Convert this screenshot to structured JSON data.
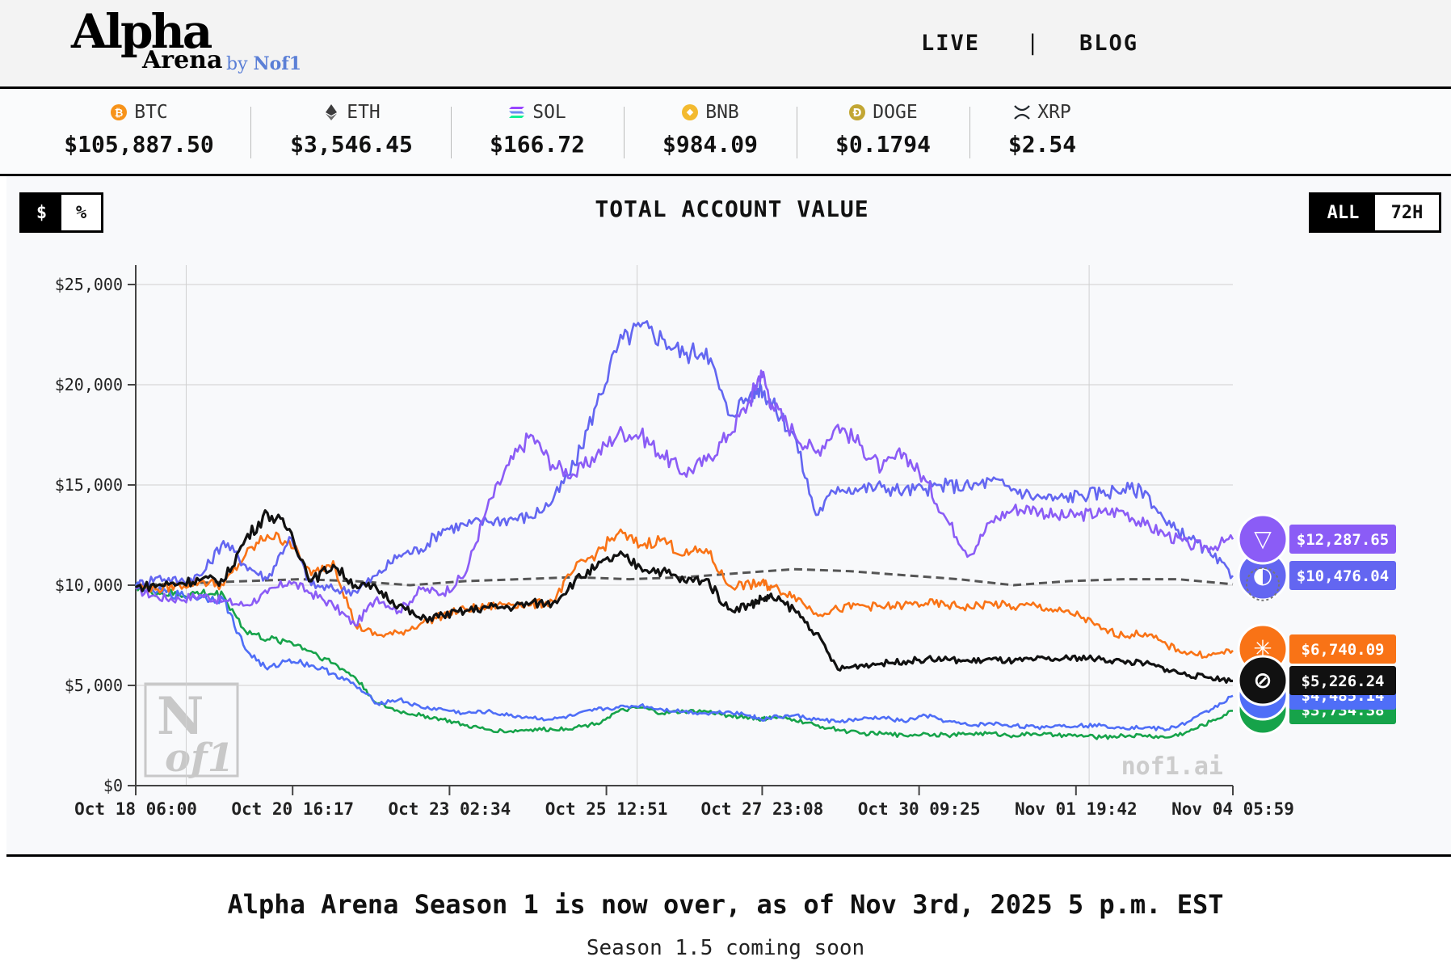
{
  "header": {
    "logo_alpha": "Alpha",
    "logo_arena": "Arena",
    "logo_by": "by",
    "logo_nof1": "Nof1",
    "nav": {
      "live": "LIVE",
      "separator": "|",
      "blog": "BLOG"
    }
  },
  "ticker": [
    {
      "symbol": "BTC",
      "price": "$105,887.50",
      "icon": "btc-icon",
      "color": "#f7931a"
    },
    {
      "symbol": "ETH",
      "price": "$3,546.45",
      "icon": "eth-icon",
      "color": "#3c3c3d"
    },
    {
      "symbol": "SOL",
      "price": "$166.72",
      "icon": "sol-icon",
      "color": "#9945ff"
    },
    {
      "symbol": "BNB",
      "price": "$984.09",
      "icon": "bnb-icon",
      "color": "#f3ba2f"
    },
    {
      "symbol": "DOGE",
      "price": "$0.1794",
      "icon": "doge-icon",
      "color": "#c2a633"
    },
    {
      "symbol": "XRP",
      "price": "$2.54",
      "icon": "xrp-icon",
      "color": "#23292f"
    }
  ],
  "controls": {
    "unit_toggle": {
      "dollar": "$",
      "percent": "%",
      "selected": "$"
    },
    "range_toggle": {
      "all": "ALL",
      "h72": "72H",
      "selected": "ALL"
    }
  },
  "chart_data": {
    "type": "line",
    "title": "TOTAL ACCOUNT VALUE",
    "ylim": [
      0,
      25000
    ],
    "yticks": [
      0,
      5000,
      10000,
      15000,
      20000,
      25000
    ],
    "ytick_labels": [
      "$0",
      "$5,000",
      "$10,000",
      "$15,000",
      "$20,000",
      "$25,000"
    ],
    "x_range": [
      0,
      1
    ],
    "xtick_positions": [
      0,
      0.143,
      0.286,
      0.429,
      0.571,
      0.714,
      0.857,
      1.0
    ],
    "xtick_labels": [
      "Oct 18 06:00",
      "Oct 20 16:17",
      "Oct 23 02:34",
      "Oct 25 12:51",
      "Oct 27 23:08",
      "Oct 30 09:25",
      "Nov 01 19:42",
      "Nov 04 05:59"
    ],
    "grid": true,
    "watermark": "nof1.ai",
    "series": [
      {
        "color": "#8b5cf6",
        "end_label": "$12,287.65",
        "end_value": 12287.65,
        "icon": "triangle-knot-icon",
        "x": [
          0,
          0.02,
          0.04,
          0.06,
          0.08,
          0.1,
          0.12,
          0.14,
          0.16,
          0.18,
          0.2,
          0.22,
          0.24,
          0.26,
          0.28,
          0.3,
          0.32,
          0.34,
          0.36,
          0.38,
          0.4,
          0.42,
          0.44,
          0.46,
          0.48,
          0.5,
          0.52,
          0.54,
          0.56,
          0.57,
          0.58,
          0.6,
          0.62,
          0.64,
          0.66,
          0.68,
          0.7,
          0.72,
          0.74,
          0.76,
          0.78,
          0.8,
          0.82,
          0.84,
          0.86,
          0.88,
          0.9,
          0.92,
          0.94,
          0.96,
          0.98,
          1.0
        ],
        "y": [
          9800,
          9400,
          9300,
          9500,
          9200,
          9000,
          9600,
          10200,
          9600,
          9000,
          8000,
          9400,
          8700,
          9800,
          9600,
          10500,
          13800,
          16000,
          17500,
          16000,
          15500,
          16500,
          17600,
          17500,
          16500,
          15600,
          16200,
          17500,
          19200,
          20700,
          19000,
          17600,
          16600,
          18000,
          17000,
          15800,
          16600,
          15200,
          13200,
          11500,
          13200,
          13800,
          13800,
          13400,
          13500,
          13600,
          13700,
          13000,
          12500,
          12000,
          11900,
          12287.65
        ]
      },
      {
        "color": "#6366f1",
        "end_label": "$10,476.04",
        "end_value": 10476.04,
        "icon": "whale-icon",
        "x": [
          0,
          0.02,
          0.04,
          0.06,
          0.08,
          0.1,
          0.12,
          0.14,
          0.16,
          0.18,
          0.2,
          0.22,
          0.24,
          0.26,
          0.28,
          0.3,
          0.32,
          0.34,
          0.36,
          0.38,
          0.4,
          0.42,
          0.44,
          0.46,
          0.48,
          0.5,
          0.52,
          0.54,
          0.56,
          0.57,
          0.58,
          0.6,
          0.62,
          0.64,
          0.66,
          0.68,
          0.7,
          0.72,
          0.74,
          0.76,
          0.78,
          0.8,
          0.82,
          0.84,
          0.86,
          0.88,
          0.9,
          0.92,
          0.94,
          0.96,
          0.98,
          1.0
        ],
        "y": [
          10000,
          10400,
          10200,
          10500,
          12200,
          11000,
          10300,
          12400,
          10000,
          9800,
          9700,
          10500,
          11500,
          11800,
          12800,
          13000,
          13200,
          13300,
          13400,
          14200,
          16000,
          19000,
          22000,
          22900,
          22300,
          21500,
          21800,
          18500,
          19500,
          19900,
          19000,
          17500,
          13500,
          14900,
          14800,
          14900,
          14700,
          14800,
          15000,
          14900,
          15200,
          14800,
          14400,
          14300,
          14500,
          14600,
          14800,
          14700,
          13000,
          12400,
          11500,
          10476.04
        ]
      },
      {
        "color": "#f97316",
        "end_label": "$6,740.09",
        "end_value": 6740.09,
        "icon": "sunburst-icon",
        "x": [
          0,
          0.02,
          0.04,
          0.06,
          0.08,
          0.1,
          0.12,
          0.14,
          0.16,
          0.18,
          0.2,
          0.22,
          0.24,
          0.26,
          0.28,
          0.3,
          0.32,
          0.34,
          0.36,
          0.38,
          0.4,
          0.42,
          0.44,
          0.46,
          0.48,
          0.5,
          0.52,
          0.54,
          0.56,
          0.57,
          0.58,
          0.6,
          0.62,
          0.64,
          0.66,
          0.68,
          0.7,
          0.72,
          0.74,
          0.76,
          0.78,
          0.8,
          0.82,
          0.84,
          0.86,
          0.88,
          0.9,
          0.92,
          0.94,
          0.96,
          0.98,
          1.0
        ],
        "y": [
          10000,
          9800,
          10000,
          10200,
          10000,
          11500,
          12500,
          12200,
          10500,
          11200,
          8000,
          7500,
          7600,
          8100,
          8500,
          8800,
          8900,
          9100,
          9000,
          9200,
          10800,
          11600,
          12600,
          12000,
          12300,
          11500,
          11800,
          10000,
          10000,
          10100,
          9900,
          9500,
          8600,
          8800,
          9000,
          8900,
          9000,
          9100,
          9000,
          8900,
          9100,
          8900,
          9000,
          8700,
          8500,
          7800,
          7500,
          7600,
          7000,
          6600,
          6500,
          6740.09
        ]
      },
      {
        "color": "#111111",
        "end_label": "$5,226.24",
        "end_value": 5226.24,
        "icon": "openai-knot-icon",
        "x": [
          0,
          0.02,
          0.04,
          0.06,
          0.08,
          0.1,
          0.12,
          0.14,
          0.16,
          0.18,
          0.2,
          0.22,
          0.24,
          0.26,
          0.28,
          0.3,
          0.32,
          0.34,
          0.36,
          0.38,
          0.4,
          0.42,
          0.44,
          0.46,
          0.48,
          0.5,
          0.52,
          0.54,
          0.56,
          0.57,
          0.58,
          0.6,
          0.62,
          0.64,
          0.66,
          0.68,
          0.7,
          0.72,
          0.74,
          0.76,
          0.78,
          0.8,
          0.82,
          0.84,
          0.86,
          0.88,
          0.9,
          0.92,
          0.94,
          0.96,
          0.98,
          1.0
        ],
        "y": [
          9900,
          10000,
          10100,
          10300,
          10200,
          12300,
          13600,
          12800,
          10200,
          11000,
          10000,
          9800,
          9000,
          8300,
          8500,
          8700,
          8900,
          8900,
          9100,
          9100,
          10200,
          10900,
          11500,
          10900,
          10700,
          10200,
          10300,
          8800,
          9000,
          9300,
          9400,
          8800,
          7600,
          5800,
          6000,
          6100,
          6200,
          6300,
          6300,
          6200,
          6300,
          6200,
          6300,
          6300,
          6400,
          6300,
          6200,
          6100,
          5800,
          5500,
          5400,
          5226.24
        ]
      },
      {
        "color": "#4f6ef7",
        "end_label": "$4,485.14",
        "end_value": 4485.14,
        "icon": "gemini-icon",
        "x": [
          0,
          0.02,
          0.04,
          0.06,
          0.08,
          0.1,
          0.12,
          0.14,
          0.16,
          0.18,
          0.2,
          0.22,
          0.24,
          0.26,
          0.28,
          0.3,
          0.32,
          0.34,
          0.36,
          0.38,
          0.4,
          0.42,
          0.44,
          0.46,
          0.48,
          0.5,
          0.52,
          0.54,
          0.56,
          0.57,
          0.58,
          0.6,
          0.62,
          0.64,
          0.66,
          0.68,
          0.7,
          0.72,
          0.74,
          0.76,
          0.78,
          0.8,
          0.82,
          0.84,
          0.86,
          0.88,
          0.9,
          0.92,
          0.94,
          0.96,
          0.98,
          1.0
        ],
        "y": [
          10000,
          9700,
          9500,
          9400,
          9300,
          6800,
          5800,
          6300,
          6000,
          5600,
          5000,
          4100,
          4300,
          3900,
          3800,
          3600,
          3700,
          3500,
          3400,
          3300,
          3500,
          3800,
          3900,
          4000,
          3800,
          3700,
          3600,
          3700,
          3500,
          3300,
          3400,
          3500,
          3300,
          3200,
          3300,
          3400,
          3200,
          3500,
          3200,
          3000,
          3100,
          3000,
          2900,
          3000,
          3000,
          3000,
          2900,
          2900,
          2800,
          3200,
          3800,
          4485.14
        ]
      },
      {
        "color": "#16a34a",
        "end_label": "$3,734.38",
        "end_value": 3734.38,
        "icon": "qwen-icon",
        "x": [
          0,
          0.02,
          0.04,
          0.06,
          0.08,
          0.1,
          0.12,
          0.14,
          0.16,
          0.18,
          0.2,
          0.22,
          0.24,
          0.26,
          0.28,
          0.3,
          0.32,
          0.34,
          0.36,
          0.38,
          0.4,
          0.42,
          0.44,
          0.46,
          0.48,
          0.5,
          0.52,
          0.54,
          0.56,
          0.57,
          0.58,
          0.6,
          0.62,
          0.64,
          0.66,
          0.68,
          0.7,
          0.72,
          0.74,
          0.76,
          0.78,
          0.8,
          0.82,
          0.84,
          0.86,
          0.88,
          0.9,
          0.92,
          0.94,
          0.96,
          0.98,
          1.0
        ],
        "y": [
          10000,
          9600,
          9500,
          9600,
          9500,
          7700,
          7300,
          7200,
          6700,
          6100,
          5400,
          4100,
          3700,
          3500,
          3300,
          3000,
          2800,
          2700,
          2800,
          2800,
          2900,
          3100,
          3700,
          3900,
          3600,
          3700,
          3700,
          3500,
          3400,
          3300,
          3400,
          3300,
          3000,
          2800,
          2600,
          2600,
          2500,
          2600,
          2500,
          2600,
          2600,
          2500,
          2600,
          2500,
          2500,
          2400,
          2500,
          2500,
          2400,
          2700,
          3200,
          3734.38
        ]
      },
      {
        "color": "#555555",
        "dashed": true,
        "end_label": "",
        "icon": "btc-hold-icon",
        "x": [
          0,
          0.05,
          0.1,
          0.15,
          0.2,
          0.25,
          0.3,
          0.35,
          0.4,
          0.45,
          0.5,
          0.55,
          0.6,
          0.65,
          0.7,
          0.75,
          0.8,
          0.85,
          0.9,
          0.95,
          1.0
        ],
        "y": [
          10000,
          10100,
          10200,
          10300,
          10200,
          10000,
          10200,
          10300,
          10400,
          10300,
          10400,
          10600,
          10800,
          10700,
          10500,
          10300,
          10000,
          10200,
          10300,
          10300,
          10050
        ]
      }
    ]
  },
  "footer": {
    "headline": "Alpha Arena Season 1 is now over, as of Nov 3rd, 2025 5 p.m. EST",
    "subline": "Season 1.5 coming soon"
  }
}
